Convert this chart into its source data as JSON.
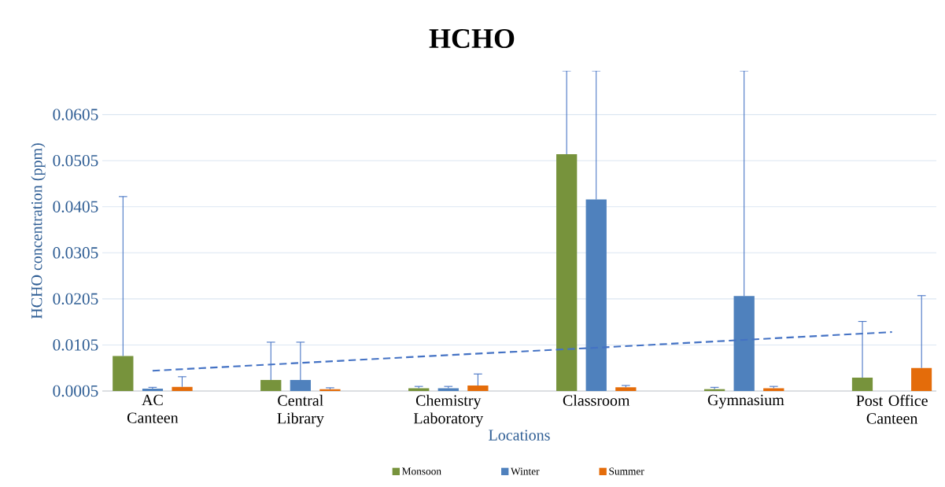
{
  "chart_data": {
    "type": "bar",
    "title": "HCHO",
    "xlabel": "Locations",
    "ylabel": "HCHO concentration (ppm)",
    "categories": [
      "AC Canteen",
      "Central Library",
      "Chemistry Laboratory",
      "Classroom",
      "Gymnasium",
      "Post Office Canteen"
    ],
    "series": [
      {
        "name": "Monsoon",
        "color": "#77933c",
        "values": [
          0.0081,
          0.0029,
          0.0011,
          0.0519,
          0.0009,
          0.0034
        ],
        "errors": [
          [
            0.0081,
            0.0427
          ],
          [
            0.0029,
            0.0111
          ],
          [
            0.0011,
            0.0015
          ],
          [
            0.0519,
            0.07
          ],
          [
            0.0009,
            0.0013
          ],
          [
            0.0034,
            0.0156
          ]
        ]
      },
      {
        "name": "Winter",
        "color": "#4f81bd",
        "values": [
          0.001,
          0.0029,
          0.0011,
          0.0421,
          0.0211,
          null
        ],
        "errors": [
          [
            0.001,
            0.0013
          ],
          [
            0.0029,
            0.0111
          ],
          [
            0.0011,
            0.0015
          ],
          [
            0.0421,
            0.07
          ],
          [
            0.0211,
            0.07
          ],
          null
        ]
      },
      {
        "name": "Summer",
        "color": "#e46c0a",
        "values": [
          0.0014,
          0.0009,
          0.0017,
          0.0013,
          0.0011,
          0.0055
        ],
        "errors": [
          [
            0.0014,
            0.0036
          ],
          [
            0.0009,
            0.0012
          ],
          [
            0.0017,
            0.0042
          ],
          [
            0.0013,
            0.0017
          ],
          [
            0.0011,
            0.0015
          ],
          [
            0.0055,
            0.0212
          ]
        ]
      },
      {
        "type": "line",
        "color": "#4472c4",
        "line_style": "dashed",
        "marker": "none",
        "values": [
          0.0049,
          0.0066,
          0.0083,
          0.0099,
          0.0116,
          0.0133
        ]
      }
    ],
    "ylim": [
      0.0005,
      0.07
    ],
    "yticks": [
      0.0005,
      0.0105,
      0.0205,
      0.0305,
      0.0405,
      0.0505,
      0.0605
    ],
    "grid": "y",
    "legend": "bottom"
  }
}
